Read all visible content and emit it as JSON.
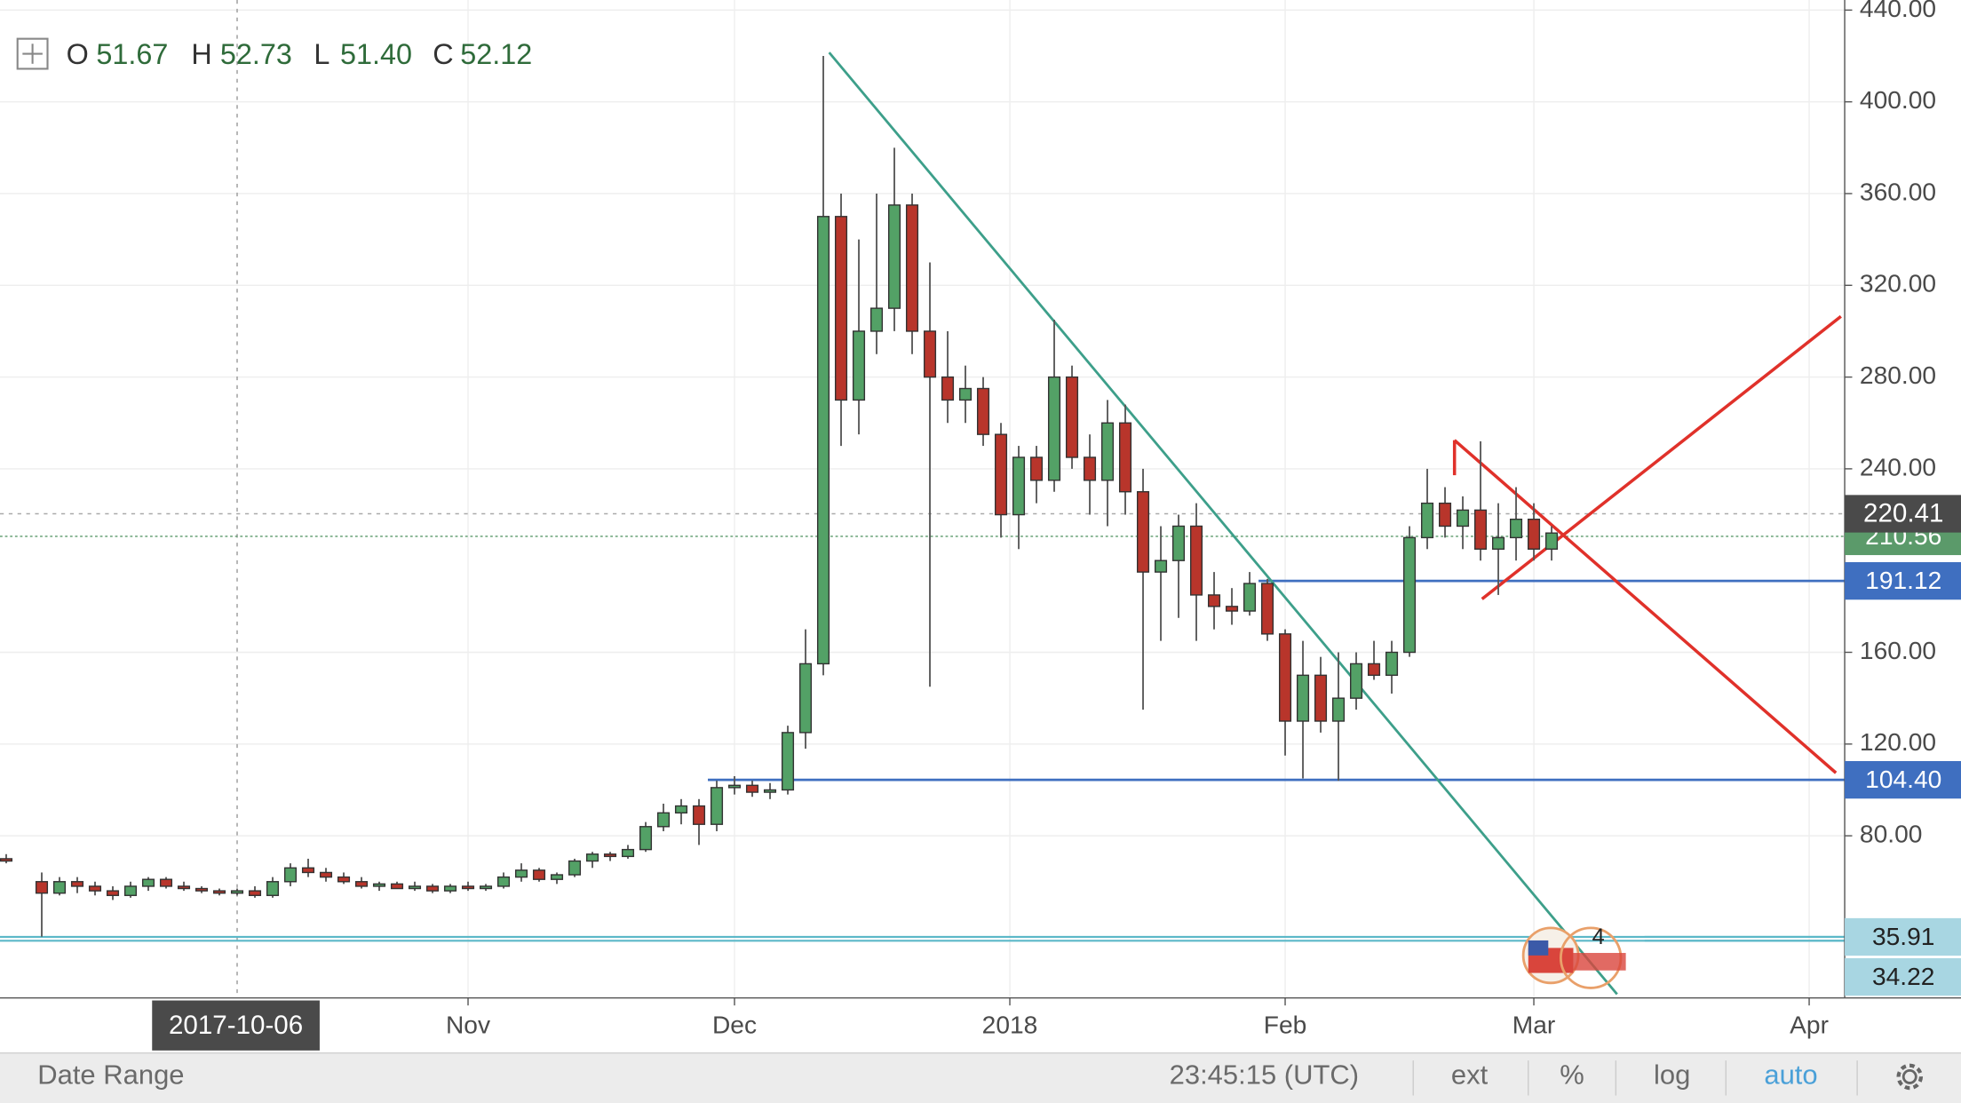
{
  "chart_data": {
    "type": "candlestick",
    "header": {
      "open_label": "O",
      "open": "51.67",
      "high_label": "H",
      "high": "52.73",
      "low_label": "L",
      "low": "51.40",
      "close_label": "C",
      "close": "52.12"
    },
    "x": [
      0,
      4,
      6,
      8,
      10,
      12,
      14,
      16,
      18,
      20,
      22,
      24,
      26,
      28,
      30,
      32,
      34,
      36,
      38,
      40,
      42,
      44,
      46,
      48,
      50,
      52,
      54,
      56,
      58,
      60,
      62,
      64,
      66,
      68,
      70,
      72,
      74,
      76,
      78,
      80,
      82,
      84,
      86,
      88,
      90,
      92,
      94,
      96,
      98,
      100,
      102,
      104,
      106,
      108,
      110,
      112,
      114,
      116,
      118,
      120,
      122,
      124,
      126,
      128,
      130,
      132,
      134,
      136,
      138,
      140,
      142,
      144,
      146,
      148,
      150,
      152,
      154,
      156,
      158,
      160,
      162,
      164,
      166,
      168,
      170,
      172,
      174
    ],
    "open": [
      70,
      60,
      55,
      60,
      58,
      56,
      54,
      58,
      61,
      58,
      57,
      56,
      55,
      56,
      54,
      60,
      66,
      64,
      62,
      60,
      58,
      59,
      57,
      58,
      56,
      58,
      57,
      58,
      62,
      65,
      61,
      63,
      69,
      72,
      71,
      74,
      84,
      90,
      93,
      85,
      101,
      102,
      99,
      100,
      125,
      155,
      350,
      270,
      300,
      310,
      355,
      300,
      280,
      270,
      275,
      255,
      220,
      245,
      235,
      280,
      245,
      235,
      260,
      230,
      195,
      200,
      215,
      185,
      180,
      178,
      190,
      168,
      130,
      150,
      130,
      140,
      155,
      150,
      160,
      210,
      225,
      215,
      222,
      205,
      210,
      218,
      205
    ],
    "high": [
      72,
      64,
      62,
      62,
      60,
      58,
      60,
      62,
      62,
      60,
      58,
      57,
      57,
      58,
      62,
      68,
      70,
      66,
      64,
      62,
      60,
      60,
      60,
      59,
      59,
      60,
      59,
      64,
      68,
      66,
      64,
      70,
      73,
      73,
      76,
      86,
      94,
      96,
      96,
      104,
      106,
      104,
      103,
      128,
      170,
      420,
      360,
      340,
      360,
      380,
      360,
      330,
      300,
      285,
      280,
      260,
      250,
      250,
      305,
      285,
      255,
      270,
      268,
      240,
      215,
      220,
      225,
      195,
      188,
      195,
      192,
      170,
      165,
      158,
      160,
      160,
      165,
      165,
      215,
      240,
      232,
      228,
      252,
      225,
      232,
      225,
      215
    ],
    "low": [
      68,
      36,
      54,
      55,
      54,
      52,
      53,
      56,
      57,
      56,
      55,
      54,
      54,
      53,
      53,
      58,
      62,
      60,
      59,
      57,
      56,
      57,
      56,
      55,
      55,
      56,
      56,
      57,
      60,
      60,
      59,
      62,
      66,
      69,
      70,
      73,
      82,
      85,
      76,
      82,
      98,
      97,
      96,
      98,
      118,
      150,
      250,
      255,
      290,
      300,
      290,
      145,
      260,
      260,
      250,
      210,
      205,
      225,
      230,
      240,
      220,
      215,
      220,
      135,
      165,
      175,
      165,
      170,
      172,
      176,
      165,
      115,
      105,
      125,
      104,
      135,
      148,
      142,
      158,
      205,
      210,
      205,
      200,
      185,
      200,
      200,
      200
    ],
    "close": [
      69,
      55,
      60,
      58,
      56,
      54,
      58,
      61,
      58,
      57,
      56,
      55,
      56,
      54,
      60,
      66,
      64,
      62,
      60,
      58,
      59,
      57,
      58,
      56,
      58,
      57,
      58,
      62,
      65,
      61,
      63,
      69,
      72,
      71,
      74,
      84,
      90,
      93,
      85,
      101,
      102,
      99,
      100,
      125,
      155,
      350,
      270,
      300,
      310,
      355,
      300,
      280,
      270,
      275,
      255,
      220,
      245,
      235,
      280,
      245,
      235,
      260,
      230,
      195,
      200,
      215,
      185,
      180,
      178,
      190,
      168,
      130,
      150,
      130,
      140,
      155,
      150,
      160,
      210,
      225,
      215,
      222,
      205,
      210,
      218,
      205,
      212
    ],
    "up_color": "#53a166",
    "down_color": "#b8352b",
    "xlim": [
      -0.7,
      207
    ],
    "ylim": [
      9.3,
      444.4
    ],
    "xticks": [
      {
        "value": 52,
        "label": "Nov"
      },
      {
        "value": 82,
        "label": "Dec"
      },
      {
        "value": 113,
        "label": "2018"
      },
      {
        "value": 144,
        "label": "Feb"
      },
      {
        "value": 172,
        "label": "Mar"
      },
      {
        "value": 203,
        "label": "Apr"
      }
    ],
    "yticks": [
      {
        "value": 80,
        "label": "80.00"
      },
      {
        "value": 120,
        "label": "120.00"
      },
      {
        "value": 160,
        "label": "160.00"
      },
      {
        "value": 240,
        "label": "240.00"
      },
      {
        "value": 280,
        "label": "280.00"
      },
      {
        "value": 320,
        "label": "320.00"
      },
      {
        "value": 360,
        "label": "360.00"
      },
      {
        "value": 400,
        "label": "400.00"
      },
      {
        "value": 440,
        "label": "440.00"
      }
    ],
    "grid": true,
    "crosshair": {
      "x": {
        "value": 26,
        "label": "2017-10-06"
      },
      "y": {
        "value": 220.41,
        "label": "220.41"
      }
    },
    "price_labels": [
      {
        "value": 210.56,
        "label": "210.56",
        "color": "#5b9a6a"
      },
      {
        "value": 191.12,
        "label": "191.12",
        "color": "#3f6fc0"
      },
      {
        "value": 104.4,
        "label": "104.40",
        "color": "#3f6fc0"
      },
      {
        "value": 35.91,
        "label": "35.91",
        "color": "#a8d6e2"
      },
      {
        "value": 34.22,
        "label": "34.22",
        "color": "#a8d6e2"
      }
    ],
    "events_badge": "4",
    "toolbar": {
      "date_range": "Date Range",
      "clock": "23:45:15 (UTC)",
      "buttons": [
        "ext",
        "%",
        "log",
        "auto"
      ]
    }
  }
}
